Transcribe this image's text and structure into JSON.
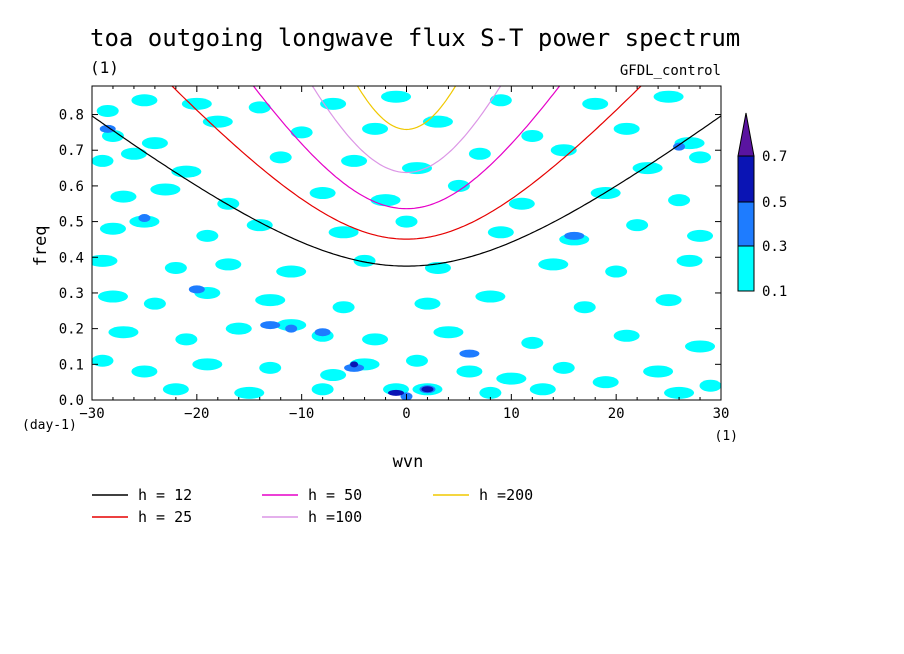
{
  "chart_data": {
    "type": "heatmap",
    "title": "toa outgoing longwave flux S-T power spectrum",
    "subtitle_left": "(1)",
    "subtitle_right": "GFDL_control",
    "xlabel": "wvn",
    "ylabel": "freq",
    "x_units": "(1)",
    "y_units": "(day-1)",
    "xlim": [
      -30,
      30
    ],
    "ylim": [
      0,
      0.88
    ],
    "x_ticks": [
      -30,
      -20,
      -10,
      0,
      10,
      20,
      30
    ],
    "y_ticks": [
      0.0,
      0.1,
      0.2,
      0.3,
      0.4,
      0.5,
      0.6,
      0.7,
      0.8
    ],
    "y_tick_labels": [
      "0.0",
      "0.1",
      "0.2",
      "0.3",
      "0.4",
      "0.5",
      "0.6",
      "0.7",
      "0.8"
    ],
    "contour_levels": [
      "0.1",
      "0.3",
      "0.5",
      "0.7"
    ],
    "contour_colors": [
      "#00ffff",
      "#1e7cff",
      "#0a14b4",
      "#5a14a0"
    ],
    "spectrum_patches": [
      {
        "x": -28.5,
        "y": 0.81,
        "level": 0
      },
      {
        "x": -25,
        "y": 0.84,
        "level": 0
      },
      {
        "x": -20,
        "y": 0.83,
        "level": 0
      },
      {
        "x": -14,
        "y": 0.82,
        "level": 0
      },
      {
        "x": -7,
        "y": 0.83,
        "level": 0
      },
      {
        "x": -1,
        "y": 0.85,
        "level": 0
      },
      {
        "x": 9,
        "y": 0.84,
        "level": 0
      },
      {
        "x": 18,
        "y": 0.83,
        "level": 0
      },
      {
        "x": 25,
        "y": 0.85,
        "level": 0
      },
      {
        "x": -28,
        "y": 0.74,
        "level": 0
      },
      {
        "x": -24,
        "y": 0.72,
        "level": 0
      },
      {
        "x": -18,
        "y": 0.78,
        "level": 0
      },
      {
        "x": -10,
        "y": 0.75,
        "level": 0
      },
      {
        "x": -3,
        "y": 0.76,
        "level": 0
      },
      {
        "x": 3,
        "y": 0.78,
        "level": 0
      },
      {
        "x": 12,
        "y": 0.74,
        "level": 0
      },
      {
        "x": 21,
        "y": 0.76,
        "level": 0
      },
      {
        "x": 27,
        "y": 0.72,
        "level": 0
      },
      {
        "x": -29,
        "y": 0.67,
        "level": 0
      },
      {
        "x": -26,
        "y": 0.69,
        "level": 0
      },
      {
        "x": -21,
        "y": 0.64,
        "level": 0
      },
      {
        "x": -12,
        "y": 0.68,
        "level": 0
      },
      {
        "x": -5,
        "y": 0.67,
        "level": 0
      },
      {
        "x": 1,
        "y": 0.65,
        "level": 0
      },
      {
        "x": 7,
        "y": 0.69,
        "level": 0
      },
      {
        "x": 15,
        "y": 0.7,
        "level": 0
      },
      {
        "x": 23,
        "y": 0.65,
        "level": 0
      },
      {
        "x": 28,
        "y": 0.68,
        "level": 0
      },
      {
        "x": -27,
        "y": 0.57,
        "level": 0
      },
      {
        "x": -23,
        "y": 0.59,
        "level": 0
      },
      {
        "x": -17,
        "y": 0.55,
        "level": 0
      },
      {
        "x": -8,
        "y": 0.58,
        "level": 0
      },
      {
        "x": -2,
        "y": 0.56,
        "level": 0
      },
      {
        "x": 5,
        "y": 0.6,
        "level": 0
      },
      {
        "x": 11,
        "y": 0.55,
        "level": 0
      },
      {
        "x": 19,
        "y": 0.58,
        "level": 0
      },
      {
        "x": 26,
        "y": 0.56,
        "level": 0
      },
      {
        "x": -28,
        "y": 0.48,
        "level": 0
      },
      {
        "x": -25,
        "y": 0.5,
        "level": 0
      },
      {
        "x": -19,
        "y": 0.46,
        "level": 0
      },
      {
        "x": -14,
        "y": 0.49,
        "level": 0
      },
      {
        "x": -6,
        "y": 0.47,
        "level": 0
      },
      {
        "x": 0,
        "y": 0.5,
        "level": 0
      },
      {
        "x": 9,
        "y": 0.47,
        "level": 0
      },
      {
        "x": 16,
        "y": 0.45,
        "level": 0
      },
      {
        "x": 22,
        "y": 0.49,
        "level": 0
      },
      {
        "x": 28,
        "y": 0.46,
        "level": 0
      },
      {
        "x": -29,
        "y": 0.39,
        "level": 0
      },
      {
        "x": -22,
        "y": 0.37,
        "level": 0
      },
      {
        "x": -17,
        "y": 0.38,
        "level": 0
      },
      {
        "x": -11,
        "y": 0.36,
        "level": 0
      },
      {
        "x": -4,
        "y": 0.39,
        "level": 0
      },
      {
        "x": 3,
        "y": 0.37,
        "level": 0
      },
      {
        "x": 14,
        "y": 0.38,
        "level": 0
      },
      {
        "x": 20,
        "y": 0.36,
        "level": 0
      },
      {
        "x": 27,
        "y": 0.39,
        "level": 0
      },
      {
        "x": -28,
        "y": 0.29,
        "level": 0
      },
      {
        "x": -24,
        "y": 0.27,
        "level": 0
      },
      {
        "x": -19,
        "y": 0.3,
        "level": 0
      },
      {
        "x": -13,
        "y": 0.28,
        "level": 0
      },
      {
        "x": -6,
        "y": 0.26,
        "level": 0
      },
      {
        "x": 2,
        "y": 0.27,
        "level": 0
      },
      {
        "x": 8,
        "y": 0.29,
        "level": 0
      },
      {
        "x": 17,
        "y": 0.26,
        "level": 0
      },
      {
        "x": 25,
        "y": 0.28,
        "level": 0
      },
      {
        "x": -27,
        "y": 0.19,
        "level": 0
      },
      {
        "x": -21,
        "y": 0.17,
        "level": 0
      },
      {
        "x": -16,
        "y": 0.2,
        "level": 0
      },
      {
        "x": -11,
        "y": 0.21,
        "level": 0
      },
      {
        "x": -8,
        "y": 0.18,
        "level": 0
      },
      {
        "x": -3,
        "y": 0.17,
        "level": 0
      },
      {
        "x": 4,
        "y": 0.19,
        "level": 0
      },
      {
        "x": 12,
        "y": 0.16,
        "level": 0
      },
      {
        "x": 21,
        "y": 0.18,
        "level": 0
      },
      {
        "x": 28,
        "y": 0.15,
        "level": 0
      },
      {
        "x": -29,
        "y": 0.11,
        "level": 0
      },
      {
        "x": -25,
        "y": 0.08,
        "level": 0
      },
      {
        "x": -19,
        "y": 0.1,
        "level": 0
      },
      {
        "x": -13,
        "y": 0.09,
        "level": 0
      },
      {
        "x": -7,
        "y": 0.07,
        "level": 0
      },
      {
        "x": -4,
        "y": 0.1,
        "level": 0
      },
      {
        "x": 1,
        "y": 0.11,
        "level": 0
      },
      {
        "x": 6,
        "y": 0.08,
        "level": 0
      },
      {
        "x": 10,
        "y": 0.06,
        "level": 0
      },
      {
        "x": 15,
        "y": 0.09,
        "level": 0
      },
      {
        "x": 19,
        "y": 0.05,
        "level": 0
      },
      {
        "x": 24,
        "y": 0.08,
        "level": 0
      },
      {
        "x": 29,
        "y": 0.04,
        "level": 0
      },
      {
        "x": -22,
        "y": 0.03,
        "level": 0
      },
      {
        "x": -15,
        "y": 0.02,
        "level": 0
      },
      {
        "x": -8,
        "y": 0.03,
        "level": 0
      },
      {
        "x": -1,
        "y": 0.03,
        "level": 0
      },
      {
        "x": 2,
        "y": 0.03,
        "level": 0
      },
      {
        "x": 8,
        "y": 0.02,
        "level": 0
      },
      {
        "x": 13,
        "y": 0.03,
        "level": 0
      },
      {
        "x": 26,
        "y": 0.02,
        "level": 0
      },
      {
        "x": -25,
        "y": 0.51,
        "level": 1
      },
      {
        "x": -20,
        "y": 0.31,
        "level": 1
      },
      {
        "x": -13,
        "y": 0.21,
        "level": 1
      },
      {
        "x": -11,
        "y": 0.2,
        "level": 1
      },
      {
        "x": -8,
        "y": 0.19,
        "level": 1
      },
      {
        "x": 16,
        "y": 0.46,
        "level": 1
      },
      {
        "x": 26,
        "y": 0.71,
        "level": 1
      },
      {
        "x": -28.5,
        "y": 0.76,
        "level": 1
      },
      {
        "x": -5,
        "y": 0.09,
        "level": 1
      },
      {
        "x": 0,
        "y": 0.01,
        "level": 1
      },
      {
        "x": 2,
        "y": 0.03,
        "level": 1
      },
      {
        "x": 6,
        "y": 0.13,
        "level": 1
      },
      {
        "x": -5,
        "y": 0.1,
        "level": 2
      },
      {
        "x": 2,
        "y": 0.03,
        "level": 2
      },
      {
        "x": -1,
        "y": 0.02,
        "level": 2
      }
    ],
    "dispersion_curves": [
      {
        "h_value": "12",
        "equivalent_depth": 12,
        "color": "#000000"
      },
      {
        "h_value": "25",
        "equivalent_depth": 25,
        "color": "#e60000"
      },
      {
        "h_value": "50",
        "equivalent_depth": 50,
        "color": "#e600c8"
      },
      {
        "h_value": "100",
        "equivalent_depth": 100,
        "color": "#dc96e6"
      },
      {
        "h_value": "200",
        "equivalent_depth": 200,
        "color": "#f0c800"
      }
    ]
  },
  "legend": [
    {
      "label": "h = 12",
      "color": "#000000"
    },
    {
      "label": "h = 25",
      "color": "#e60000"
    },
    {
      "label": "h = 50",
      "color": "#e600c8"
    },
    {
      "label": "h =100",
      "color": "#dc96e6"
    },
    {
      "label": "h =200",
      "color": "#f0c800"
    }
  ]
}
